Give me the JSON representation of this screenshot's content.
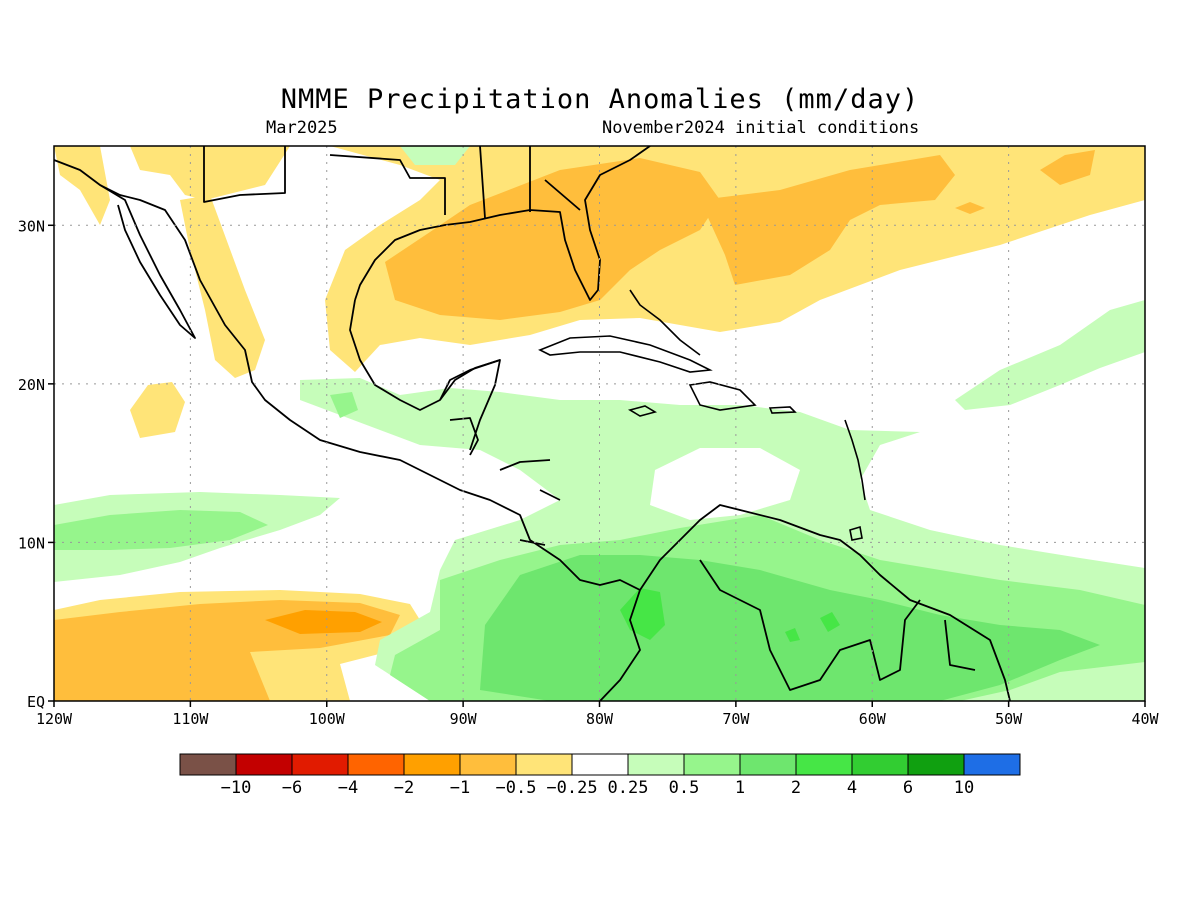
{
  "title": "NMME Precipitation Anomalies (mm/day)",
  "subtitle_left": "Mar2025",
  "subtitle_right": "November2024 initial conditions",
  "lon_labels": [
    "120W",
    "110W",
    "100W",
    "90W",
    "80W",
    "70W",
    "60W",
    "50W",
    "40W"
  ],
  "lat_labels": [
    "EQ",
    "10N",
    "20N",
    "30N"
  ],
  "lon_range": [
    -120,
    -40
  ],
  "lat_range": [
    0,
    35
  ],
  "colorbar": {
    "colors": [
      "#7a5147",
      "#c30000",
      "#e11b00",
      "#ff6400",
      "#ffa000",
      "#ffbe3c",
      "#ffe478",
      "#ffffff",
      "#c6fdba",
      "#96f58c",
      "#6ee66e",
      "#46e646",
      "#32cd32",
      "#10a010",
      "#1e6ee6"
    ],
    "labels": [
      "−10",
      "−6",
      "−4",
      "−2",
      "−1",
      "−0.5",
      "−0.25",
      "0.25",
      "0.5",
      "1",
      "2",
      "4",
      "6",
      "10"
    ]
  },
  "anomaly_colors": {
    "light_orange": "#ffe478",
    "orange": "#ffbe3c",
    "dark_orange": "#ffa000",
    "light_green": "#c6fdba",
    "green": "#96f58c",
    "mid_green": "#6ee66e",
    "bright_green": "#46e646"
  }
}
